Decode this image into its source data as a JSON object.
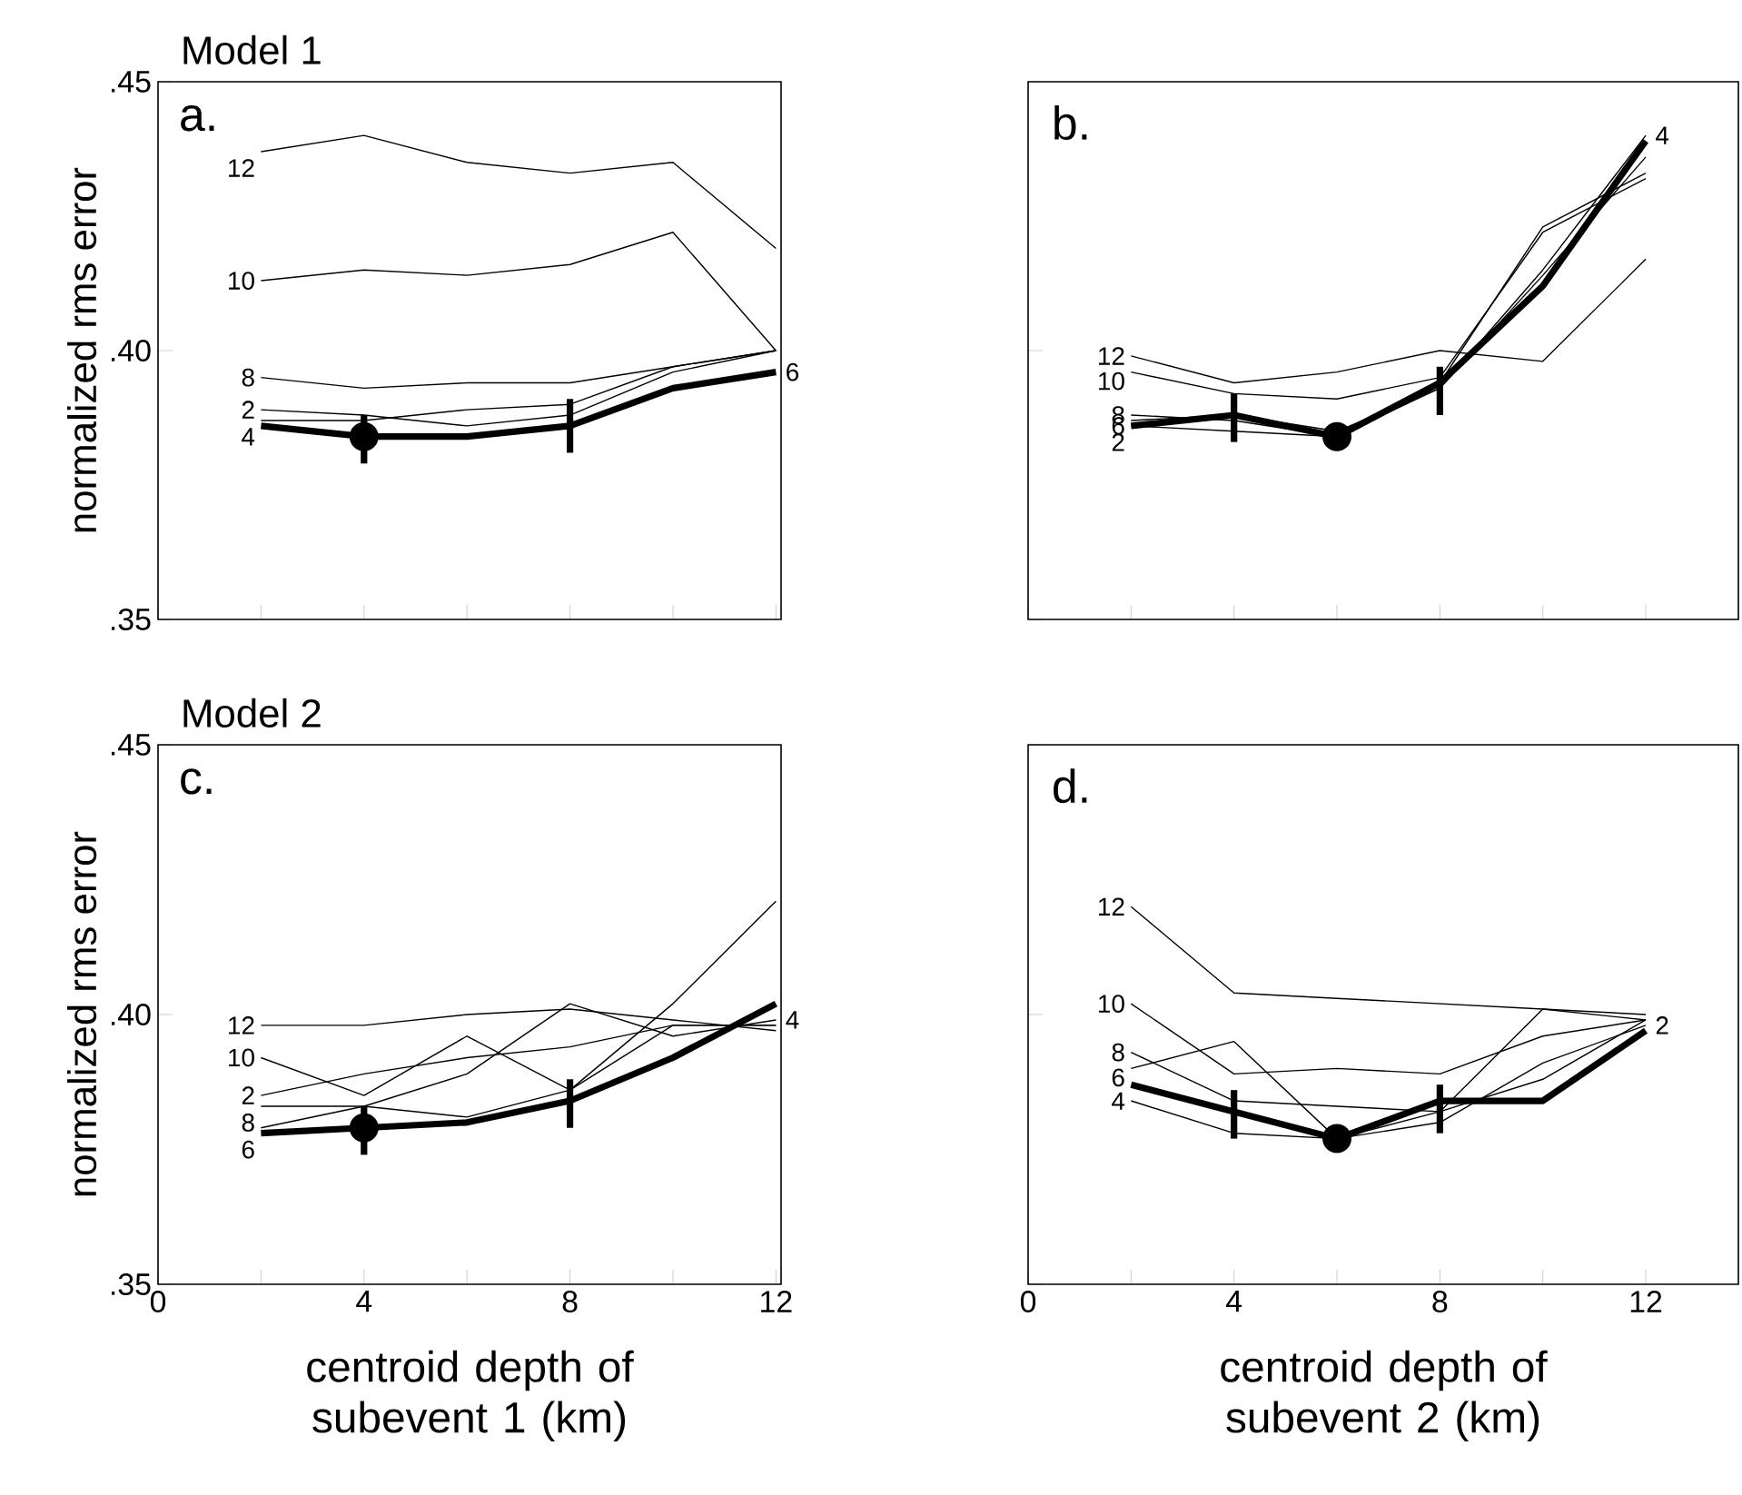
{
  "chart_data": [
    {
      "type": "line",
      "title": "Model 1",
      "ylabel": "normalized rms error",
      "annotations": [
        "a."
      ],
      "xlim": [
        0,
        12.1
      ],
      "ylim": [
        0.35,
        0.45
      ],
      "xticks": [
        0,
        {
          "value": 2,
          "label": null
        },
        4,
        {
          "value": 6,
          "label": null
        },
        8,
        {
          "value": 10,
          "label": null
        },
        12
      ],
      "yticks": [
        {
          "value": 0.35,
          "label": ".35"
        },
        {
          "value": 0.4,
          "label": ".40"
        },
        {
          "value": 0.45,
          "label": ".45"
        }
      ],
      "tick_labels": "y",
      "x": [
        2,
        4,
        6,
        8,
        10,
        12
      ],
      "series": [
        {
          "name": "2",
          "color": "#000000",
          "values": [
            0.389,
            0.388,
            0.386,
            0.388,
            0.396,
            0.4
          ]
        },
        {
          "name": "4",
          "color": "#000000",
          "values": [
            0.387,
            0.387,
            0.389,
            0.39,
            0.397,
            0.4
          ]
        },
        {
          "name": "6",
          "color": "#000000",
          "values": [
            0.386,
            0.384,
            0.384,
            0.386,
            0.393,
            0.396
          ],
          "errors": [
            null,
            [
              0.379,
              0.388
            ],
            null,
            [
              0.381,
              0.391
            ],
            null,
            null
          ]
        },
        {
          "name": "8",
          "color": "#000000",
          "values": [
            0.395,
            0.393,
            0.394,
            0.394,
            0.397,
            0.4
          ]
        },
        {
          "name": "10",
          "color": "#000000",
          "values": [
            0.413,
            0.415,
            0.414,
            0.416,
            0.422,
            0.4
          ]
        },
        {
          "name": "12",
          "color": "#000000",
          "values": [
            0.437,
            0.44,
            0.435,
            0.433,
            0.435,
            0.419
          ]
        },
        {
          "type": "scatter",
          "marker": "circle",
          "color": "#000000",
          "values": [
            null,
            0.384,
            null,
            null,
            null,
            null
          ]
        }
      ]
    },
    {
      "type": "line",
      "annotations": [
        "b."
      ],
      "xlim": [
        0,
        13.8
      ],
      "ylim": [
        0.35,
        0.45
      ],
      "xticks": [
        0,
        {
          "value": 2,
          "label": null
        },
        4,
        {
          "value": 6,
          "label": null
        },
        8,
        {
          "value": 10,
          "label": null
        },
        12
      ],
      "yticks": [
        0.35,
        0.4,
        0.45
      ],
      "tick_labels": false,
      "x": [
        2,
        4,
        6,
        8,
        10,
        12
      ],
      "series": [
        {
          "name": "2",
          "color": "#000000",
          "values": [
            0.386,
            0.385,
            0.384,
            0.393,
            0.414,
            0.436
          ]
        },
        {
          "name": "4",
          "color": "#000000",
          "values": [
            0.387,
            0.388,
            0.385,
            0.393,
            0.415,
            0.44
          ]
        },
        {
          "name": "6",
          "color": "#000000",
          "values": [
            0.386,
            0.388,
            0.384,
            0.394,
            0.412,
            0.439
          ],
          "errors": [
            null,
            [
              0.383,
              0.392
            ],
            null,
            [
              0.388,
              0.397
            ],
            null,
            null
          ]
        },
        {
          "name": "8",
          "color": "#000000",
          "values": [
            0.388,
            0.387,
            0.384,
            0.394,
            0.423,
            0.433
          ]
        },
        {
          "name": "10",
          "color": "#000000",
          "values": [
            0.396,
            0.392,
            0.391,
            0.395,
            0.422,
            0.432
          ]
        },
        {
          "name": "12",
          "color": "#000000",
          "values": [
            0.399,
            0.394,
            0.396,
            0.4,
            0.398,
            0.417
          ]
        },
        {
          "type": "scatter",
          "marker": "circle",
          "color": "#000000",
          "values": [
            null,
            null,
            0.384,
            null,
            null,
            null
          ]
        }
      ]
    },
    {
      "type": "line",
      "title": "Model 2",
      "ylabel": "normalized rms error",
      "xlabel": "centroid depth of subevent 1 (km)",
      "annotations": [
        "c."
      ],
      "xlim": [
        0,
        12.1
      ],
      "ylim": [
        0.35,
        0.45
      ],
      "xticks": [
        0,
        {
          "value": 2,
          "label": null
        },
        4,
        {
          "value": 6,
          "label": null
        },
        8,
        {
          "value": 10,
          "label": null
        },
        12
      ],
      "yticks": [
        {
          "value": 0.35,
          "label": ".35"
        },
        {
          "value": 0.4,
          "label": ".40"
        },
        {
          "value": 0.45,
          "label": ".45"
        }
      ],
      "x": [
        2,
        4,
        6,
        8,
        10,
        12
      ],
      "series": [
        {
          "name": "2",
          "color": "#000000",
          "values": [
            0.385,
            0.389,
            0.392,
            0.394,
            0.398,
            0.398
          ]
        },
        {
          "name": "4",
          "color": "#000000",
          "values": [
            0.379,
            0.383,
            0.389,
            0.402,
            0.396,
            0.399
          ]
        },
        {
          "name": "6",
          "color": "#000000",
          "values": [
            0.378,
            0.379,
            0.38,
            0.384,
            0.392,
            0.402
          ],
          "errors": [
            null,
            [
              0.374,
              0.383
            ],
            null,
            [
              0.379,
              0.388
            ],
            null,
            null
          ]
        },
        {
          "name": "8",
          "color": "#000000",
          "values": [
            0.383,
            0.383,
            0.381,
            0.386,
            0.402,
            0.421
          ]
        },
        {
          "name": "10",
          "color": "#000000",
          "values": [
            0.392,
            0.385,
            0.396,
            0.386,
            0.398,
            0.398
          ]
        },
        {
          "name": "12",
          "color": "#000000",
          "values": [
            0.398,
            0.398,
            0.4,
            0.401,
            0.399,
            0.397
          ]
        },
        {
          "type": "scatter",
          "marker": "circle",
          "color": "#000000",
          "values": [
            null,
            0.379,
            null,
            null,
            null,
            null
          ]
        }
      ]
    },
    {
      "type": "line",
      "xlabel": "centroid depth of subevent 2 (km)",
      "annotations": [
        "d."
      ],
      "xlim": [
        0,
        13.8
      ],
      "ylim": [
        0.35,
        0.45
      ],
      "xticks": [
        0,
        {
          "value": 2,
          "label": null
        },
        4,
        {
          "value": 6,
          "label": null
        },
        8,
        {
          "value": 10,
          "label": null
        },
        12
      ],
      "yticks": [
        0.35,
        0.4,
        0.45
      ],
      "tick_labels": "x",
      "x": [
        2,
        4,
        6,
        8,
        10,
        12
      ],
      "series": [
        {
          "name": "2",
          "color": "#000000",
          "values": [
            0.384,
            0.378,
            0.377,
            0.38,
            0.391,
            0.398
          ]
        },
        {
          "name": "4",
          "color": "#000000",
          "values": [
            0.387,
            0.382,
            0.377,
            0.384,
            0.384,
            0.397
          ],
          "errors": [
            null,
            [
              0.377,
              0.386
            ],
            null,
            [
              0.378,
              0.387
            ],
            null,
            null
          ]
        },
        {
          "name": "6",
          "color": "#000000",
          "values": [
            0.39,
            0.395,
            0.377,
            0.382,
            0.401,
            0.399
          ]
        },
        {
          "name": "8",
          "color": "#000000",
          "values": [
            0.393,
            0.384,
            0.383,
            0.382,
            0.388,
            0.399
          ]
        },
        {
          "name": "10",
          "color": "#000000",
          "values": [
            0.402,
            0.389,
            0.39,
            0.389,
            0.396,
            0.399
          ]
        },
        {
          "name": "12",
          "color": "#000000",
          "values": [
            0.42,
            0.404,
            0.403,
            0.402,
            0.401,
            0.4
          ]
        },
        {
          "type": "scatter",
          "marker": "circle",
          "color": "#000000",
          "values": [
            null,
            null,
            0.377,
            null,
            null,
            null
          ]
        }
      ]
    }
  ]
}
